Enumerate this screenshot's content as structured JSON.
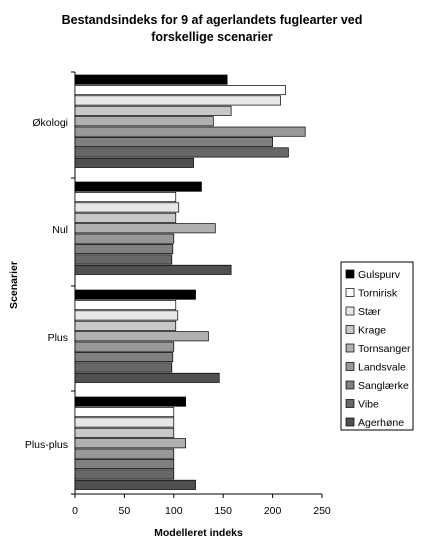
{
  "chart_data": {
    "type": "bar",
    "orientation": "horizontal",
    "title_line1": "Bestandsindeks for 9 af agerlandets fuglearter ved",
    "title_line2": "forskellige scenarier",
    "xlabel": "Modelleret indeks",
    "ylabel": "Scenarier",
    "xlim": [
      0,
      250
    ],
    "xticks": [
      0,
      50,
      100,
      150,
      200,
      250
    ],
    "legend_position": "right",
    "grid": false,
    "categories": [
      "Økologi",
      "Nul",
      "Plus",
      "Plus-plus"
    ],
    "series": [
      {
        "name": "Gulspurv",
        "color": "#000000",
        "values": [
          154,
          128,
          122,
          112
        ]
      },
      {
        "name": "Tornirisk",
        "color": "#ffffff",
        "values": [
          213,
          102,
          102,
          100
        ]
      },
      {
        "name": "Stær",
        "color": "#e8e8e8",
        "values": [
          208,
          105,
          104,
          100
        ]
      },
      {
        "name": "Krage",
        "color": "#c8c8c8",
        "values": [
          158,
          102,
          102,
          100
        ]
      },
      {
        "name": "Tornsanger",
        "color": "#b0b0b0",
        "values": [
          140,
          142,
          135,
          112
        ]
      },
      {
        "name": "Landsvale",
        "color": "#989898",
        "values": [
          233,
          100,
          100,
          100
        ]
      },
      {
        "name": "Sanglærke",
        "color": "#808080",
        "values": [
          200,
          99,
          99,
          100
        ]
      },
      {
        "name": "Vibe",
        "color": "#686868",
        "values": [
          216,
          98,
          98,
          100
        ]
      },
      {
        "name": "Agerhøne",
        "color": "#505050",
        "values": [
          120,
          158,
          146,
          122
        ]
      }
    ]
  }
}
